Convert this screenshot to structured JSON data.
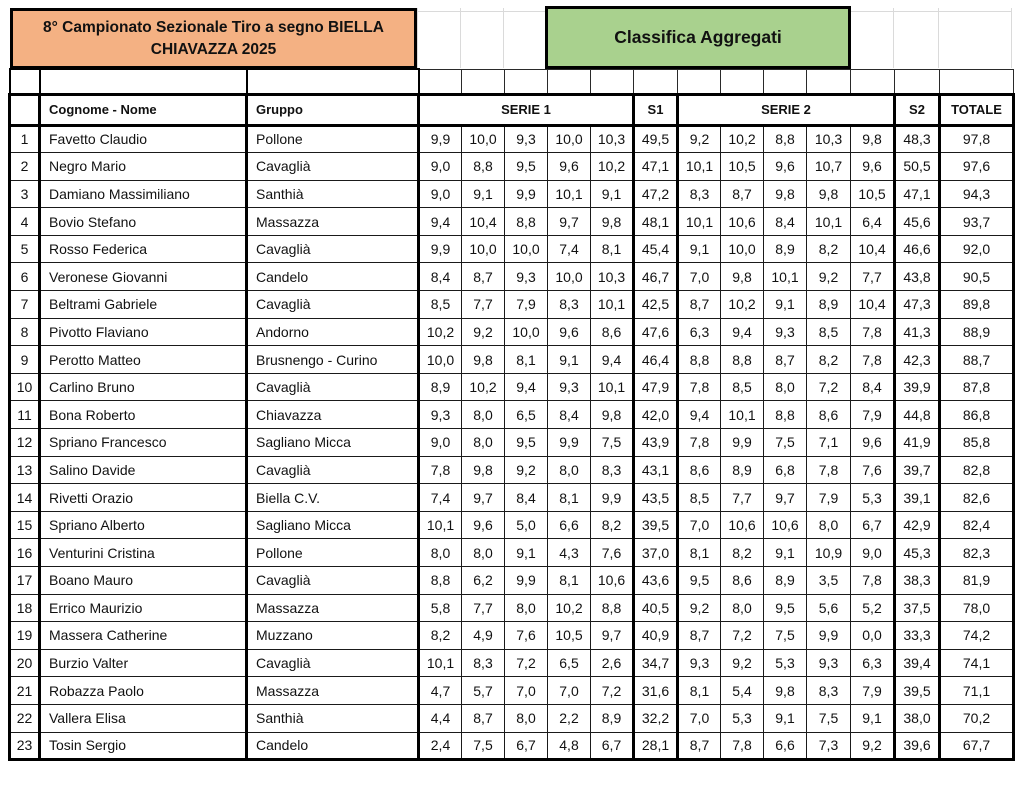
{
  "title_box": "8° Campionato Sezionale Tiro a segno BIELLA CHIAVAZZA 2025",
  "subtitle_box": "Classifica Aggregati",
  "colors": {
    "title_box_fill": "#F4B183",
    "subtitle_box_fill": "#A9D18E",
    "series_total_fill": "#FFFF00",
    "grand_total_fill": "#24AC55",
    "border": "#000000"
  },
  "table": {
    "headers": {
      "rank": "",
      "name": "Cognome - Nome",
      "group": "Gruppo",
      "serie1": "SERIE 1",
      "s1": "S1",
      "serie2": "SERIE 2",
      "s2": "S2",
      "total": "TOTALE"
    },
    "rows": [
      {
        "rank": "1",
        "name": "Favetto Claudio",
        "group": "Pollone",
        "serie1": [
          "9,9",
          "10,0",
          "9,3",
          "10,0",
          "10,3"
        ],
        "s1": "49,5",
        "serie2": [
          "9,2",
          "10,2",
          "8,8",
          "10,3",
          "9,8"
        ],
        "s2": "48,3",
        "total": "97,8"
      },
      {
        "rank": "2",
        "name": "Negro Mario",
        "group": "Cavaglià",
        "serie1": [
          "9,0",
          "8,8",
          "9,5",
          "9,6",
          "10,2"
        ],
        "s1": "47,1",
        "serie2": [
          "10,1",
          "10,5",
          "9,6",
          "10,7",
          "9,6"
        ],
        "s2": "50,5",
        "total": "97,6"
      },
      {
        "rank": "3",
        "name": "Damiano Massimiliano",
        "group": "Santhià",
        "serie1": [
          "9,0",
          "9,1",
          "9,9",
          "10,1",
          "9,1"
        ],
        "s1": "47,2",
        "serie2": [
          "8,3",
          "8,7",
          "9,8",
          "9,8",
          "10,5"
        ],
        "s2": "47,1",
        "total": "94,3"
      },
      {
        "rank": "4",
        "name": "Bovio Stefano",
        "group": "Massazza",
        "serie1": [
          "9,4",
          "10,4",
          "8,8",
          "9,7",
          "9,8"
        ],
        "s1": "48,1",
        "serie2": [
          "10,1",
          "10,6",
          "8,4",
          "10,1",
          "6,4"
        ],
        "s2": "45,6",
        "total": "93,7"
      },
      {
        "rank": "5",
        "name": "Rosso Federica",
        "group": "Cavaglià",
        "serie1": [
          "9,9",
          "10,0",
          "10,0",
          "7,4",
          "8,1"
        ],
        "s1": "45,4",
        "serie2": [
          "9,1",
          "10,0",
          "8,9",
          "8,2",
          "10,4"
        ],
        "s2": "46,6",
        "total": "92,0"
      },
      {
        "rank": "6",
        "name": "Veronese Giovanni",
        "group": "Candelo",
        "serie1": [
          "8,4",
          "8,7",
          "9,3",
          "10,0",
          "10,3"
        ],
        "s1": "46,7",
        "serie2": [
          "7,0",
          "9,8",
          "10,1",
          "9,2",
          "7,7"
        ],
        "s2": "43,8",
        "total": "90,5"
      },
      {
        "rank": "7",
        "name": "Beltrami Gabriele",
        "group": "Cavaglià",
        "serie1": [
          "8,5",
          "7,7",
          "7,9",
          "8,3",
          "10,1"
        ],
        "s1": "42,5",
        "serie2": [
          "8,7",
          "10,2",
          "9,1",
          "8,9",
          "10,4"
        ],
        "s2": "47,3",
        "total": "89,8"
      },
      {
        "rank": "8",
        "name": "Pivotto Flaviano",
        "group": "Andorno",
        "serie1": [
          "10,2",
          "9,2",
          "10,0",
          "9,6",
          "8,6"
        ],
        "s1": "47,6",
        "serie2": [
          "6,3",
          "9,4",
          "9,3",
          "8,5",
          "7,8"
        ],
        "s2": "41,3",
        "total": "88,9"
      },
      {
        "rank": "9",
        "name": "Perotto Matteo",
        "group": "Brusnengo - Curino",
        "serie1": [
          "10,0",
          "9,8",
          "8,1",
          "9,1",
          "9,4"
        ],
        "s1": "46,4",
        "serie2": [
          "8,8",
          "8,8",
          "8,7",
          "8,2",
          "7,8"
        ],
        "s2": "42,3",
        "total": "88,7"
      },
      {
        "rank": "10",
        "name": "Carlino Bruno",
        "group": "Cavaglià",
        "serie1": [
          "8,9",
          "10,2",
          "9,4",
          "9,3",
          "10,1"
        ],
        "s1": "47,9",
        "serie2": [
          "7,8",
          "8,5",
          "8,0",
          "7,2",
          "8,4"
        ],
        "s2": "39,9",
        "total": "87,8"
      },
      {
        "rank": "11",
        "name": "Bona Roberto",
        "group": "Chiavazza",
        "serie1": [
          "9,3",
          "8,0",
          "6,5",
          "8,4",
          "9,8"
        ],
        "s1": "42,0",
        "serie2": [
          "9,4",
          "10,1",
          "8,8",
          "8,6",
          "7,9"
        ],
        "s2": "44,8",
        "total": "86,8"
      },
      {
        "rank": "12",
        "name": "Spriano Francesco",
        "group": "Sagliano Micca",
        "serie1": [
          "9,0",
          "8,0",
          "9,5",
          "9,9",
          "7,5"
        ],
        "s1": "43,9",
        "serie2": [
          "7,8",
          "9,9",
          "7,5",
          "7,1",
          "9,6"
        ],
        "s2": "41,9",
        "total": "85,8"
      },
      {
        "rank": "13",
        "name": "Salino Davide",
        "group": "Cavaglià",
        "serie1": [
          "7,8",
          "9,8",
          "9,2",
          "8,0",
          "8,3"
        ],
        "s1": "43,1",
        "serie2": [
          "8,6",
          "8,9",
          "6,8",
          "7,8",
          "7,6"
        ],
        "s2": "39,7",
        "total": "82,8"
      },
      {
        "rank": "14",
        "name": "Rivetti Orazio",
        "group": "Biella C.V.",
        "serie1": [
          "7,4",
          "9,7",
          "8,4",
          "8,1",
          "9,9"
        ],
        "s1": "43,5",
        "serie2": [
          "8,5",
          "7,7",
          "9,7",
          "7,9",
          "5,3"
        ],
        "s2": "39,1",
        "total": "82,6"
      },
      {
        "rank": "15",
        "name": "Spriano Alberto",
        "group": "Sagliano Micca",
        "serie1": [
          "10,1",
          "9,6",
          "5,0",
          "6,6",
          "8,2"
        ],
        "s1": "39,5",
        "serie2": [
          "7,0",
          "10,6",
          "10,6",
          "8,0",
          "6,7"
        ],
        "s2": "42,9",
        "total": "82,4"
      },
      {
        "rank": "16",
        "name": "Venturini Cristina",
        "group": "Pollone",
        "serie1": [
          "8,0",
          "8,0",
          "9,1",
          "4,3",
          "7,6"
        ],
        "s1": "37,0",
        "serie2": [
          "8,1",
          "8,2",
          "9,1",
          "10,9",
          "9,0"
        ],
        "s2": "45,3",
        "total": "82,3"
      },
      {
        "rank": "17",
        "name": "Boano Mauro",
        "group": "Cavaglià",
        "serie1": [
          "8,8",
          "6,2",
          "9,9",
          "8,1",
          "10,6"
        ],
        "s1": "43,6",
        "serie2": [
          "9,5",
          "8,6",
          "8,9",
          "3,5",
          "7,8"
        ],
        "s2": "38,3",
        "total": "81,9"
      },
      {
        "rank": "18",
        "name": "Errico Maurizio",
        "group": "Massazza",
        "serie1": [
          "5,8",
          "7,7",
          "8,0",
          "10,2",
          "8,8"
        ],
        "s1": "40,5",
        "serie2": [
          "9,2",
          "8,0",
          "9,5",
          "5,6",
          "5,2"
        ],
        "s2": "37,5",
        "total": "78,0"
      },
      {
        "rank": "19",
        "name": "Massera Catherine",
        "group": "Muzzano",
        "serie1": [
          "8,2",
          "4,9",
          "7,6",
          "10,5",
          "9,7"
        ],
        "s1": "40,9",
        "serie2": [
          "8,7",
          "7,2",
          "7,5",
          "9,9",
          "0,0"
        ],
        "s2": "33,3",
        "total": "74,2"
      },
      {
        "rank": "20",
        "name": "Burzio Valter",
        "group": "Cavaglià",
        "serie1": [
          "10,1",
          "8,3",
          "7,2",
          "6,5",
          "2,6"
        ],
        "s1": "34,7",
        "serie2": [
          "9,3",
          "9,2",
          "5,3",
          "9,3",
          "6,3"
        ],
        "s2": "39,4",
        "total": "74,1"
      },
      {
        "rank": "21",
        "name": "Robazza Paolo",
        "group": "Massazza",
        "serie1": [
          "4,7",
          "5,7",
          "7,0",
          "7,0",
          "7,2"
        ],
        "s1": "31,6",
        "serie2": [
          "8,1",
          "5,4",
          "9,8",
          "8,3",
          "7,9"
        ],
        "s2": "39,5",
        "total": "71,1"
      },
      {
        "rank": "22",
        "name": "Vallera Elisa",
        "group": "Santhià",
        "serie1": [
          "4,4",
          "8,7",
          "8,0",
          "2,2",
          "8,9"
        ],
        "s1": "32,2",
        "serie2": [
          "7,0",
          "5,3",
          "9,1",
          "7,5",
          "9,1"
        ],
        "s2": "38,0",
        "total": "70,2"
      },
      {
        "rank": "23",
        "name": "Tosin Sergio",
        "group": "Candelo",
        "serie1": [
          "2,4",
          "7,5",
          "6,7",
          "4,8",
          "6,7"
        ],
        "s1": "28,1",
        "serie2": [
          "8,7",
          "7,8",
          "6,6",
          "7,3",
          "9,2"
        ],
        "s2": "39,6",
        "total": "67,7"
      }
    ]
  }
}
